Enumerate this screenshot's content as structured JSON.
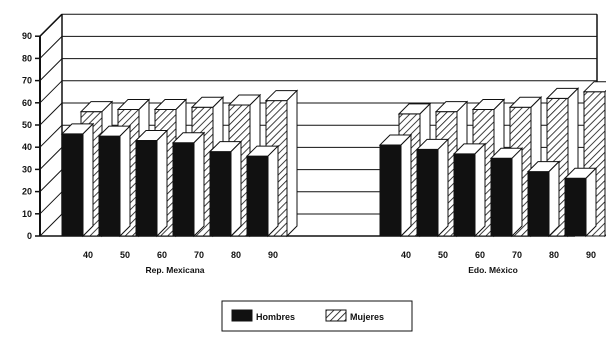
{
  "chart_data": {
    "type": "bar",
    "title": "",
    "xlabel": "",
    "ylabel": "",
    "ylim": [
      0,
      90
    ],
    "yticks": [
      "0",
      "10",
      "20",
      "30",
      "40",
      "50",
      "60",
      "70",
      "80",
      "90"
    ],
    "grid": true,
    "legend_position": "bottom-center",
    "groups": [
      {
        "label": "Rep. Mexicana",
        "categories": [
          "40",
          "50",
          "60",
          "70",
          "80",
          "90"
        ],
        "series": [
          {
            "name": "Hombres",
            "values": [
              46,
              45,
              43,
              42,
              38,
              36
            ]
          },
          {
            "name": "Mujeres",
            "values": [
              56,
              57,
              57,
              58,
              59,
              61
            ]
          }
        ]
      },
      {
        "label": "Edo. México",
        "categories": [
          "40",
          "50",
          "60",
          "70",
          "80",
          "90"
        ],
        "series": [
          {
            "name": "Hombres",
            "values": [
              41,
              39,
              37,
              35,
              29,
              26
            ]
          },
          {
            "name": "Mujeres",
            "values": [
              55,
              56,
              57,
              58,
              62,
              65
            ]
          }
        ]
      }
    ],
    "legend": [
      {
        "name": "Hombres",
        "pattern": "solid"
      },
      {
        "name": "Mujeres",
        "pattern": "hatched"
      }
    ]
  }
}
